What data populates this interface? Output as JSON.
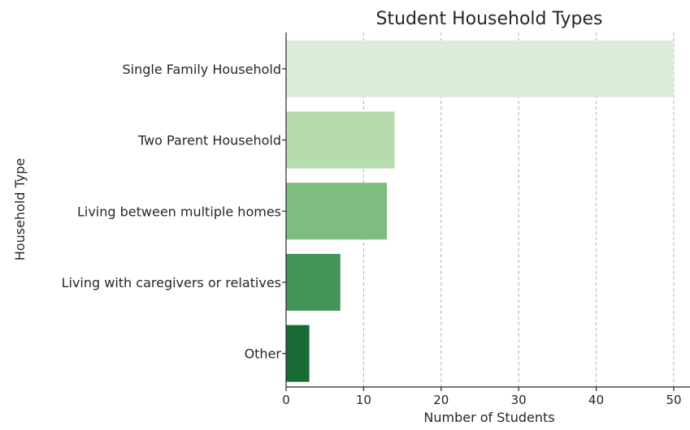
{
  "chart_data": {
    "type": "bar",
    "orientation": "horizontal",
    "title": "Student Household Types",
    "xlabel": "Number of Students",
    "ylabel": "Household Type",
    "categories": [
      "Single Family Household",
      "Two Parent Household",
      "Living between multiple homes",
      "Living with caregivers or relatives",
      "Other"
    ],
    "values": [
      50,
      14,
      13,
      7,
      3
    ],
    "colors": [
      "#dbeed7",
      "#b5dbae",
      "#7fbc7f",
      "#439256",
      "#1a6a35"
    ],
    "xlim": [
      0,
      52
    ],
    "xticks": [
      0,
      10,
      20,
      30,
      40,
      50
    ],
    "grid": "vertical dashed",
    "legend": "none"
  }
}
